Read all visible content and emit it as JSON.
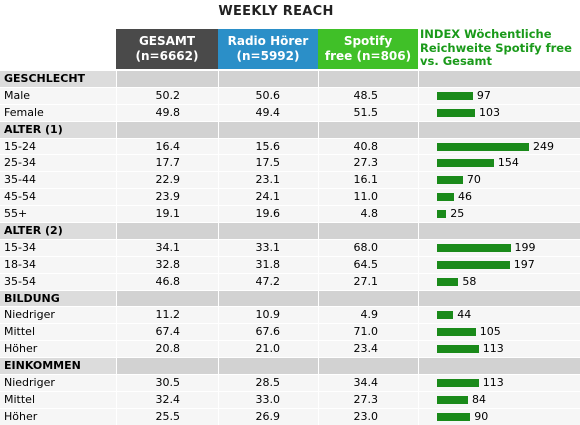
{
  "title": "WEEKLY REACH",
  "columns": {
    "gesamt": [
      "GESAMT",
      "(n=6662)"
    ],
    "radio": [
      "Radio Hörer",
      "(n=5992)"
    ],
    "spotify": [
      "Spotify",
      "free (n=806)"
    ],
    "index": [
      "INDEX Wöchentliche",
      "Reichweite Spotify free",
      "vs. Gesamt"
    ]
  },
  "colors": {
    "gesamt_header": "#4a4a4a",
    "radio_header": "#2b8fc8",
    "spotify_header": "#40c028",
    "index_text": "#1a9a1a",
    "bar": "#1a8a1a"
  },
  "chart_data": {
    "type": "table",
    "title": "WEEKLY REACH",
    "index_scale_max": 249,
    "sections": [
      {
        "name": "GESCHLECHT",
        "rows": [
          {
            "label": "Male",
            "gesamt": "50.2",
            "radio": "50.6",
            "spotify": "48.5",
            "index": 97
          },
          {
            "label": "Female",
            "gesamt": "49.8",
            "radio": "49.4",
            "spotify": "51.5",
            "index": 103
          }
        ]
      },
      {
        "name": "ALTER (1)",
        "rows": [
          {
            "label": "15-24",
            "gesamt": "16.4",
            "radio": "15.6",
            "spotify": "40.8",
            "index": 249
          },
          {
            "label": "25-34",
            "gesamt": "17.7",
            "radio": "17.5",
            "spotify": "27.3",
            "index": 154
          },
          {
            "label": "35-44",
            "gesamt": "22.9",
            "radio": "23.1",
            "spotify": "16.1",
            "index": 70
          },
          {
            "label": "45-54",
            "gesamt": "23.9",
            "radio": "24.1",
            "spotify": "11.0",
            "index": 46
          },
          {
            "label": "55+",
            "gesamt": "19.1",
            "radio": "19.6",
            "spotify": "4.8",
            "index": 25
          }
        ]
      },
      {
        "name": "ALTER (2)",
        "rows": [
          {
            "label": "15-34",
            "gesamt": "34.1",
            "radio": "33.1",
            "spotify": "68.0",
            "index": 199
          },
          {
            "label": "18-34",
            "gesamt": "32.8",
            "radio": "31.8",
            "spotify": "64.5",
            "index": 197
          },
          {
            "label": "35-54",
            "gesamt": "46.8",
            "radio": "47.2",
            "spotify": "27.1",
            "index": 58
          }
        ]
      },
      {
        "name": "BILDUNG",
        "rows": [
          {
            "label": "Niedriger",
            "gesamt": "11.2",
            "radio": "10.9",
            "spotify": "4.9",
            "index": 44
          },
          {
            "label": "Mittel",
            "gesamt": "67.4",
            "radio": "67.6",
            "spotify": "71.0",
            "index": 105
          },
          {
            "label": "Höher",
            "gesamt": "20.8",
            "radio": "21.0",
            "spotify": "23.4",
            "index": 113
          }
        ]
      },
      {
        "name": "EINKOMMEN",
        "rows": [
          {
            "label": "Niedriger",
            "gesamt": "30.5",
            "radio": "28.5",
            "spotify": "34.4",
            "index": 113
          },
          {
            "label": "Mittel",
            "gesamt": "32.4",
            "radio": "33.0",
            "spotify": "27.3",
            "index": 84
          },
          {
            "label": "Höher",
            "gesamt": "25.5",
            "radio": "26.9",
            "spotify": "23.0",
            "index": 90
          }
        ]
      }
    ]
  }
}
